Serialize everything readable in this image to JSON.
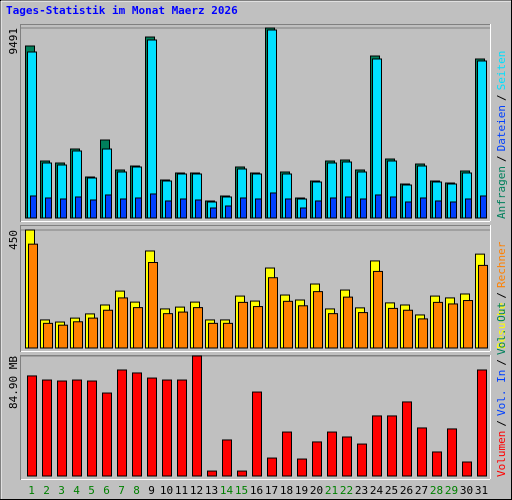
{
  "title": "Tages-Statistik im Monat Maerz 2026",
  "separator": "/",
  "chart_data": [
    {
      "type": "bar",
      "ylim": [
        0,
        9491
      ],
      "yticks": [
        9491
      ],
      "series": [
        {
          "name": "Anfragen",
          "color": "#00805c",
          "values": [
            8592,
            2847,
            2747,
            3447,
            2048,
            3896,
            2398,
            2597,
            9041,
            1898,
            2248,
            2248,
            849,
            1099,
            2548,
            2248,
            9491,
            2298,
            999,
            1848,
            2847,
            2897,
            2398,
            8092,
            2947,
            1698,
            2697,
            1848,
            1748,
            2348,
            7943
          ]
        },
        {
          "name": "Dateien",
          "color": "#0040ff",
          "values": [
            1100,
            1000,
            950,
            1050,
            900,
            1150,
            950,
            1000,
            1200,
            850,
            950,
            900,
            500,
            600,
            1000,
            950,
            1250,
            950,
            500,
            850,
            1000,
            1050,
            950,
            1150,
            1050,
            800,
            1000,
            850,
            800,
            950,
            1100
          ]
        },
        {
          "name": "Seiten",
          "color": "#00e0ff",
          "values": [
            8292,
            2747,
            2647,
            3347,
            1998,
            3446,
            2298,
            2547,
            8892,
            1848,
            2198,
            2198,
            799,
            1049,
            2448,
            2198,
            9391,
            2198,
            949,
            1798,
            2747,
            2797,
            2298,
            7943,
            2847,
            1648,
            2597,
            1798,
            1698,
            2248,
            7843
          ]
        }
      ]
    },
    {
      "type": "bar",
      "ylim": [
        0,
        450
      ],
      "yticks": [
        450
      ],
      "series": [
        {
          "name": "Besuche",
          "color": "#ffff00",
          "values": [
            450,
            107,
            99,
            114,
            130,
            164,
            217,
            175,
            370,
            149,
            156,
            175,
            107,
            107,
            198,
            179,
            305,
            202,
            183,
            244,
            149,
            221,
            153,
            332,
            172,
            164,
            126,
            198,
            191,
            206,
            358
          ]
        },
        {
          "name": "Rechner",
          "color": "#ff8000",
          "values": [
            396,
            94,
            87,
            100,
            114,
            144,
            191,
            154,
            326,
            131,
            137,
            154,
            94,
            94,
            174,
            158,
            268,
            178,
            161,
            215,
            131,
            194,
            135,
            292,
            151,
            144,
            111,
            174,
            168,
            181,
            315
          ]
        }
      ]
    },
    {
      "type": "bar",
      "ylim": [
        0,
        84.9
      ],
      "yticks": [
        {
          "value": 84.9,
          "label": "84.90 MB"
        }
      ],
      "categories": [
        "1",
        "2",
        "3",
        "4",
        "5",
        "6",
        "7",
        "8",
        "9",
        "10",
        "11",
        "12",
        "13",
        "14",
        "15",
        "16",
        "17",
        "18",
        "19",
        "20",
        "21",
        "22",
        "23",
        "24",
        "25",
        "26",
        "27",
        "28",
        "29",
        "30",
        "31"
      ],
      "label_colors": [
        "#008000",
        "#008000",
        "#008000",
        "#008000",
        "#008000",
        "#008000",
        "#008000",
        "#008000",
        "#000000",
        "#000000",
        "#000000",
        "#000000",
        "#000000",
        "#008000",
        "#008000",
        "#000000",
        "#000000",
        "#000000",
        "#000000",
        "#000000",
        "#008000",
        "#008000",
        "#000000",
        "#000000",
        "#000000",
        "#000000",
        "#000000",
        "#008000",
        "#008000",
        "#000000",
        "#000000"
      ],
      "series": [
        {
          "name": "Volumen",
          "color": "#ff0000",
          "values": [
            70.8,
            67.9,
            67.2,
            67.9,
            67.2,
            58.7,
            75.0,
            72.9,
            69.3,
            67.9,
            67.9,
            84.9,
            3.5,
            25.5,
            3.5,
            59.4,
            12.7,
            31.1,
            12.0,
            24.1,
            31.1,
            27.6,
            22.6,
            42.5,
            42.5,
            52.4,
            34.0,
            17.0,
            33.3,
            9.9,
            75.0
          ]
        },
        {
          "name": "Vol. In",
          "color": "#0040ff"
        },
        {
          "name": "Vol. Out",
          "color": "#00805c"
        }
      ]
    }
  ]
}
